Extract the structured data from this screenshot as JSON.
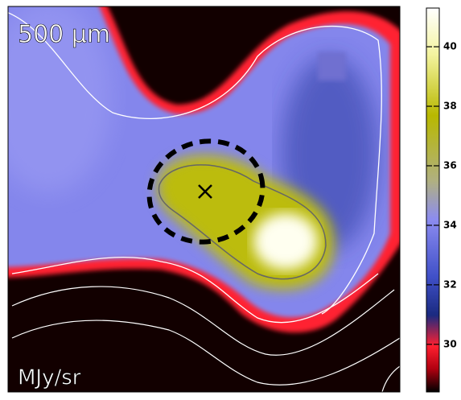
{
  "image": {
    "label": "500 μm",
    "unit": "MJy/sr"
  },
  "colorbar": {
    "lim": [
      28.4,
      41.3
    ],
    "ticks": [
      30,
      32,
      34,
      36,
      38,
      40
    ]
  }
}
